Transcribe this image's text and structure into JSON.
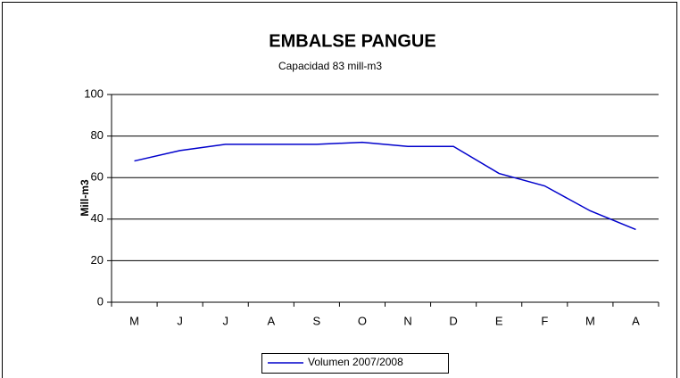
{
  "chart_data": {
    "type": "line",
    "title": "EMBALSE PANGUE",
    "subtitle": "Capacidad  83 mill-m3",
    "y_label": "Mill-m3",
    "categories": [
      "M",
      "J",
      "J",
      "A",
      "S",
      "O",
      "N",
      "D",
      "E",
      "F",
      "M",
      "A"
    ],
    "series": [
      {
        "name": "Volumen  2007/2008",
        "color": "#0000cc",
        "values": [
          68,
          73,
          76,
          76,
          76,
          77,
          75,
          75,
          62,
          56,
          44,
          35
        ]
      }
    ],
    "ylim": [
      0,
      100
    ],
    "yticks": [
      0,
      20,
      40,
      60,
      80,
      100
    ],
    "grid": true,
    "legend": "bottom"
  }
}
